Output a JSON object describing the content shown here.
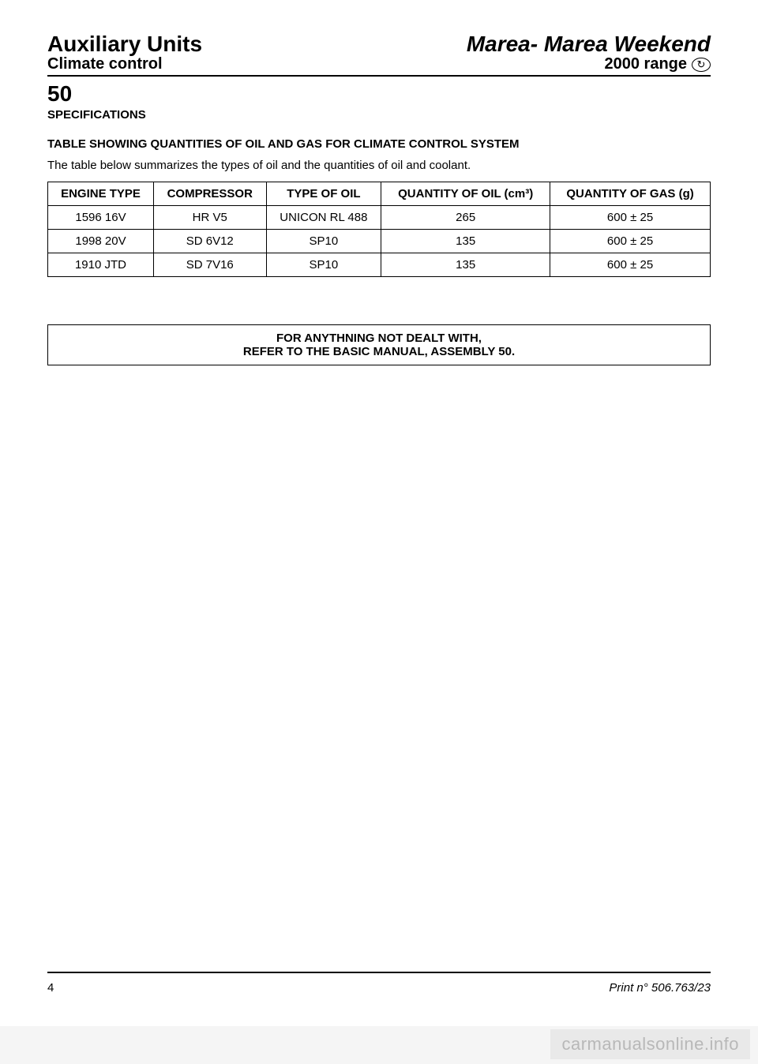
{
  "header": {
    "left_title": "Auxiliary Units",
    "right_title": "Marea- Marea Weekend",
    "left_sub": "Climate control",
    "right_sub": "2000 range",
    "icon_glyph": "↻"
  },
  "section": {
    "number": "50",
    "title": "SPECIFICATIONS"
  },
  "table_heading": "TABLE SHOWING QUANTITIES OF OIL AND GAS FOR CLIMATE CONTROL SYSTEM",
  "table_intro": "The table below summarizes the types of oil and the quantities of oil and coolant.",
  "table": {
    "columns": [
      "ENGINE TYPE",
      "COMPRESSOR",
      "TYPE OF OIL",
      "QUANTITY OF OIL (cm³)",
      "QUANTITY OF GAS (g)"
    ],
    "rows": [
      [
        "1596 16V",
        "HR V5",
        "UNICON RL 488",
        "265",
        "600 ± 25"
      ],
      [
        "1998 20V",
        "SD 6V12",
        "SP10",
        "135",
        "600 ± 25"
      ],
      [
        "1910 JTD",
        "SD 7V16",
        "SP10",
        "135",
        "600 ± 25"
      ]
    ],
    "border_color": "#000000",
    "fontsize": 15
  },
  "note": {
    "line1": "FOR ANYTHNING NOT DEALT WITH,",
    "line2": "REFER TO THE BASIC MANUAL, ASSEMBLY 50."
  },
  "footer": {
    "page_number": "4",
    "print_ref": "Print n° 506.763/23"
  },
  "watermark": "carmanualsonline.info"
}
